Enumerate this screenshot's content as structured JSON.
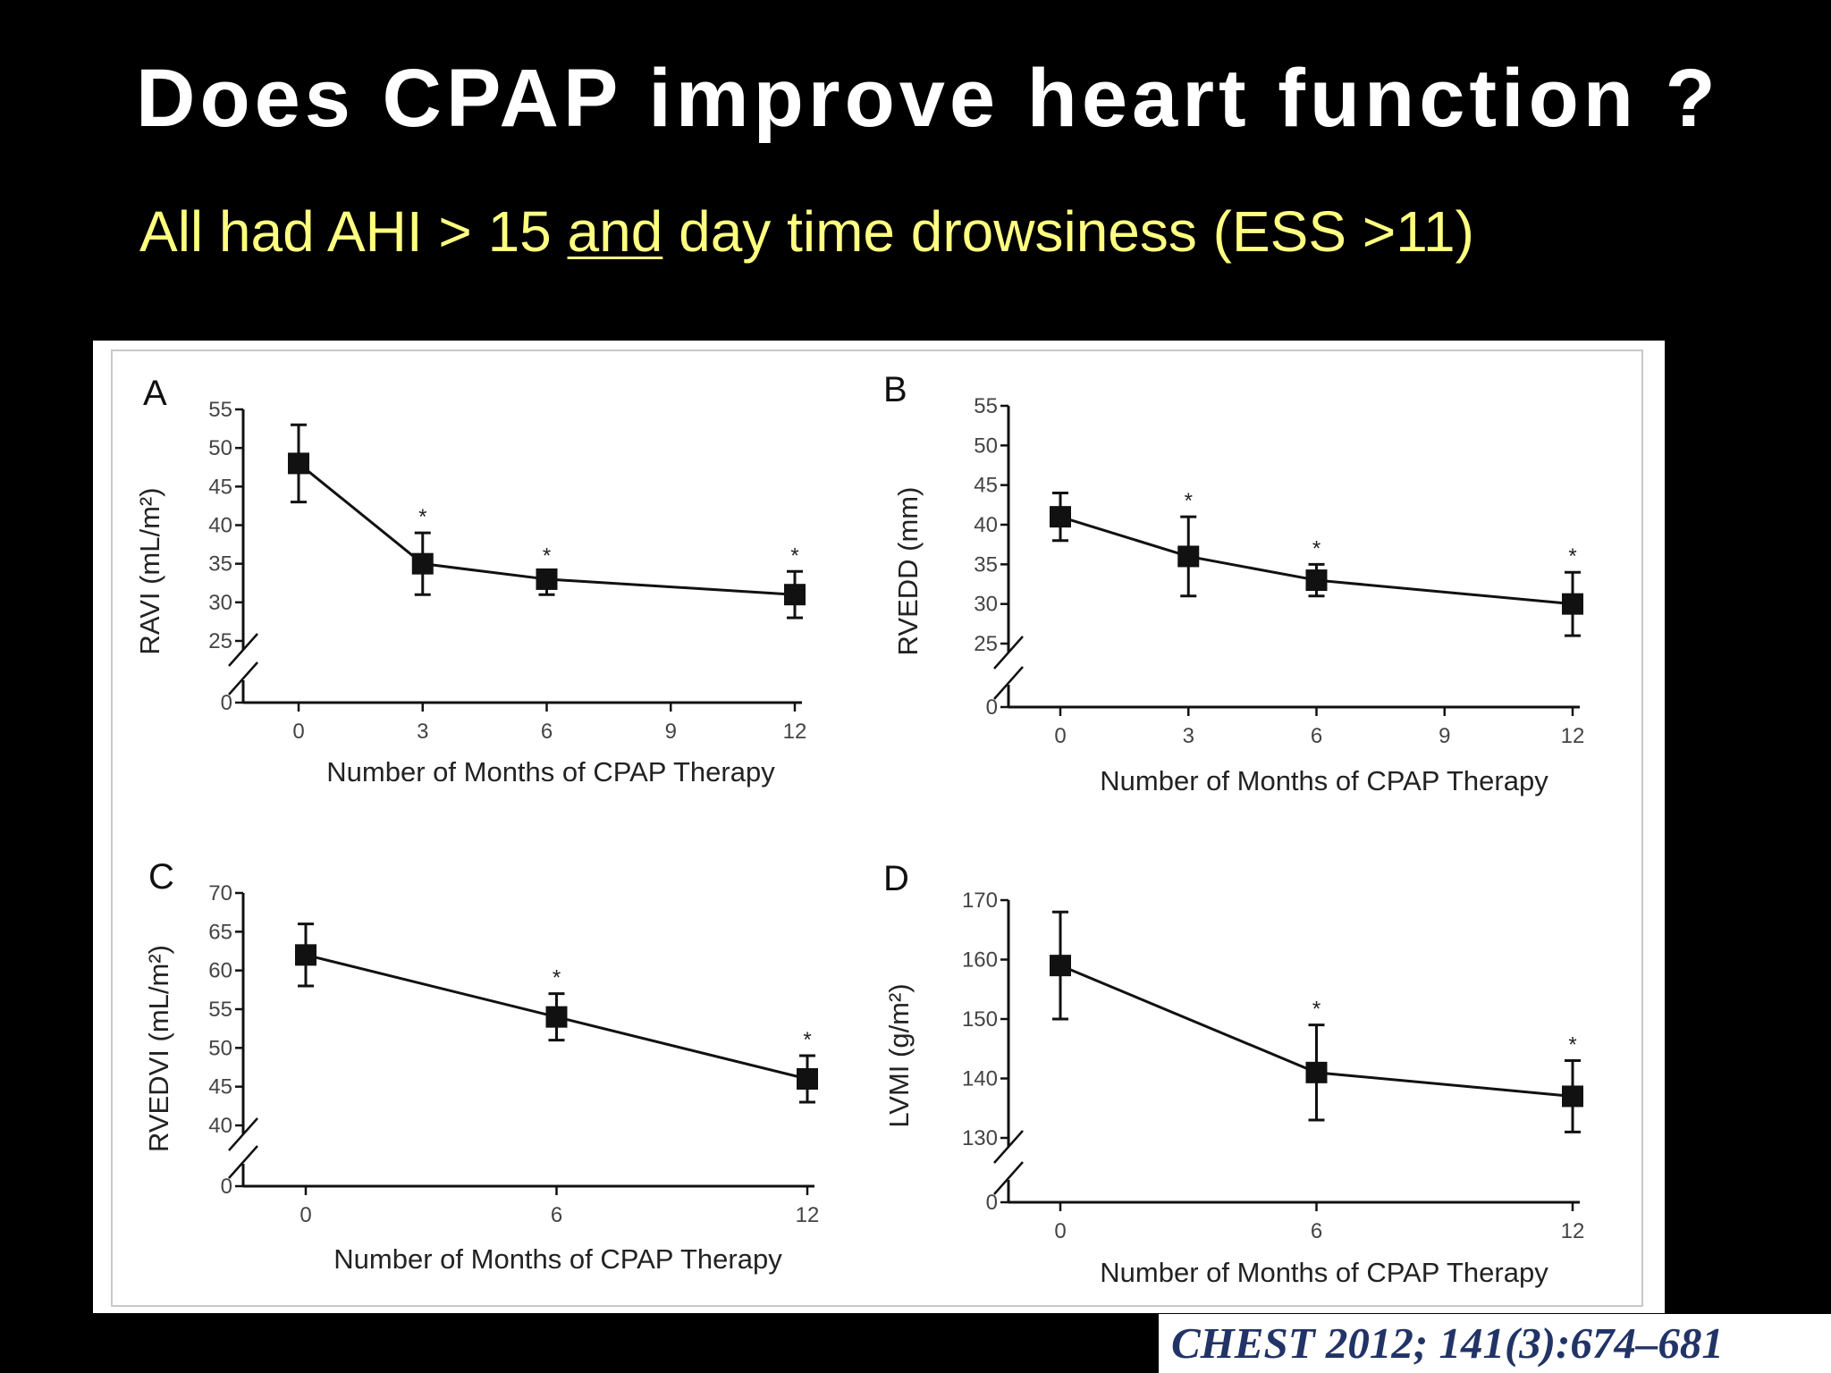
{
  "slide": {
    "title": "Does CPAP improve heart function ?",
    "subtitle_before": "All had AHI > 15 ",
    "subtitle_underlined": "and",
    "subtitle_after": " day time  drowsiness (ESS >11)",
    "citation": "CHEST 2012; 141(3):674–681"
  },
  "chart_data": [
    {
      "panel": "A",
      "type": "line",
      "ylabel": "RAVI (mL/m²)",
      "xlabel": "Number of Months of CPAP Therapy",
      "x_ticks": [
        0,
        3,
        6,
        9,
        12
      ],
      "y_ticks": [
        25,
        30,
        35,
        40,
        45,
        50,
        55
      ],
      "y_zero_label": "0",
      "ylim": [
        25,
        55
      ],
      "axis_break": true,
      "series": [
        {
          "x": [
            0,
            3,
            6,
            12
          ],
          "y": [
            48,
            35,
            33,
            31
          ],
          "err_low": [
            43,
            31,
            31,
            28
          ],
          "err_high": [
            53,
            39,
            34,
            34
          ],
          "significant": [
            false,
            true,
            true,
            true
          ]
        }
      ],
      "marker_label": "*"
    },
    {
      "panel": "B",
      "type": "line",
      "ylabel": "RVEDD (mm)",
      "xlabel": "Number of Months of CPAP Therapy",
      "x_ticks": [
        0,
        3,
        6,
        9,
        12
      ],
      "y_ticks": [
        25,
        30,
        35,
        40,
        45,
        50,
        55
      ],
      "y_zero_label": "0",
      "ylim": [
        25,
        55
      ],
      "axis_break": true,
      "series": [
        {
          "x": [
            0,
            3,
            6,
            12
          ],
          "y": [
            41,
            36,
            33,
            30
          ],
          "err_low": [
            38,
            31,
            31,
            26
          ],
          "err_high": [
            44,
            41,
            35,
            34
          ],
          "significant": [
            false,
            true,
            true,
            true
          ]
        }
      ],
      "marker_label": "*"
    },
    {
      "panel": "C",
      "type": "line",
      "ylabel": "RVEDVI (mL/m²)",
      "xlabel": "Number of Months of CPAP Therapy",
      "x_ticks": [
        0,
        6,
        12
      ],
      "y_ticks": [
        40,
        45,
        50,
        55,
        60,
        65,
        70
      ],
      "y_zero_label": "0",
      "ylim": [
        40,
        70
      ],
      "axis_break": true,
      "series": [
        {
          "x": [
            0,
            6,
            12
          ],
          "y": [
            62,
            54,
            46
          ],
          "err_low": [
            58,
            51,
            43
          ],
          "err_high": [
            66,
            57,
            49
          ],
          "significant": [
            false,
            true,
            true
          ]
        }
      ],
      "marker_label": "*"
    },
    {
      "panel": "D",
      "type": "line",
      "ylabel": "LVMI (g/m²)",
      "xlabel": "Number of Months of CPAP Therapy",
      "x_ticks": [
        0,
        6,
        12
      ],
      "y_ticks": [
        130,
        140,
        150,
        160,
        170
      ],
      "y_zero_label": "0",
      "ylim": [
        130,
        170
      ],
      "axis_break": true,
      "series": [
        {
          "x": [
            0,
            6,
            12
          ],
          "y": [
            159,
            141,
            137
          ],
          "err_low": [
            150,
            133,
            131
          ],
          "err_high": [
            168,
            149,
            143
          ],
          "significant": [
            false,
            true,
            true
          ]
        }
      ],
      "marker_label": "*"
    }
  ]
}
